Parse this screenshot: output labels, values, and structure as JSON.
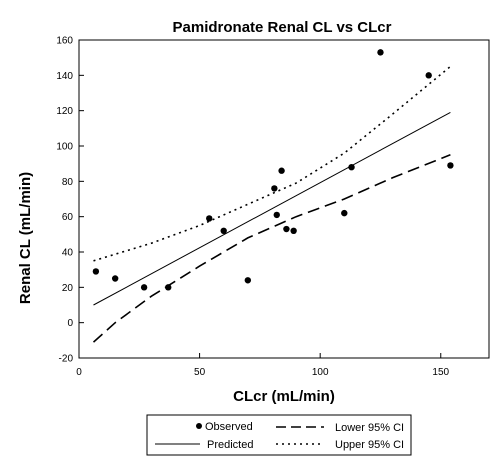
{
  "chart_data": {
    "type": "scatter",
    "title": "Pamidronate Renal CL vs CLcr",
    "xlabel": "CLcr (mL/min)",
    "ylabel": "Renal CL (mL/min)",
    "xlim": [
      0,
      170
    ],
    "ylim": [
      -20,
      160
    ],
    "xticks": [
      0,
      50,
      100,
      150
    ],
    "yticks": [
      -20,
      0,
      20,
      40,
      60,
      80,
      100,
      120,
      140,
      160
    ],
    "grid": false,
    "legend_position": "bottom",
    "series": [
      {
        "name": "Observed",
        "kind": "scatter",
        "x": [
          7,
          15,
          27,
          37,
          54,
          60,
          70,
          81,
          82,
          84,
          86,
          89,
          110,
          113,
          125,
          145,
          154
        ],
        "y": [
          29,
          25,
          20,
          20,
          59,
          52,
          24,
          76,
          61,
          86,
          53,
          52,
          62,
          88,
          153,
          140,
          89
        ]
      },
      {
        "name": "Predicted",
        "kind": "line",
        "style": "solid",
        "x": [
          6,
          154
        ],
        "y": [
          10,
          119
        ]
      },
      {
        "name": "Lower 95% CI",
        "kind": "line",
        "style": "long-dash",
        "x": [
          6,
          15,
          30,
          50,
          70,
          90,
          110,
          130,
          154
        ],
        "y": [
          -11,
          0,
          15,
          32,
          48,
          60,
          70,
          82,
          95
        ]
      },
      {
        "name": "Upper 95% CI",
        "kind": "line",
        "style": "dotted",
        "x": [
          6,
          30,
          50,
          70,
          90,
          110,
          130,
          154
        ],
        "y": [
          35,
          45,
          55,
          67,
          79,
          96,
          118,
          145
        ]
      }
    ]
  }
}
